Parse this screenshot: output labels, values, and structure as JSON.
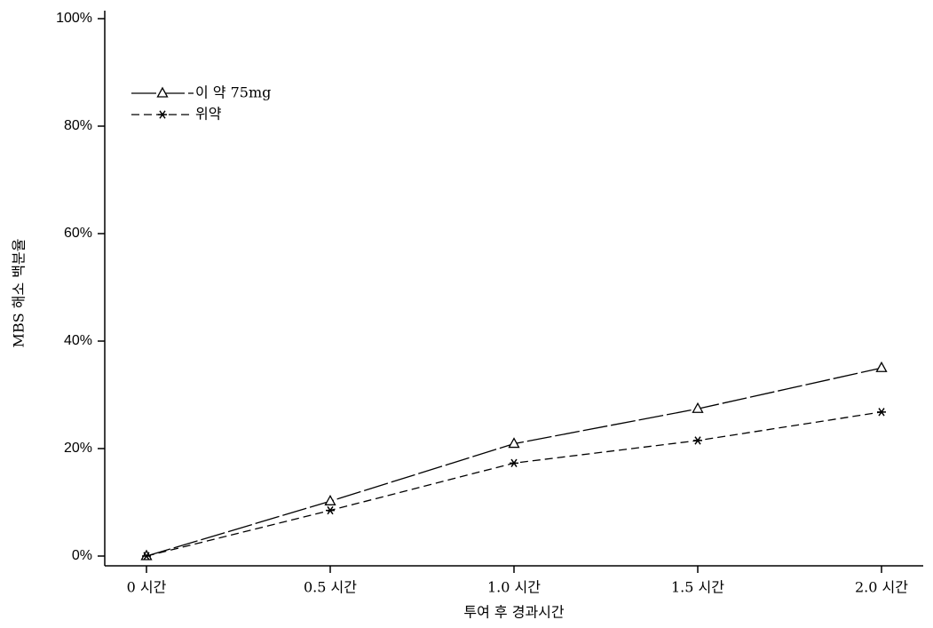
{
  "chart_data": {
    "type": "line",
    "categories": [
      "0 시간",
      "0.5 시간",
      "1.0 시간",
      "1.5 시간",
      "2.0 시간"
    ],
    "series": [
      {
        "name": "이 약 75mg",
        "color": "#000000",
        "marker": "triangle",
        "line_style": "long-dash",
        "values": [
          0,
          10.2,
          20.9,
          27.4,
          35.0
        ]
      },
      {
        "name": "위약",
        "color": "#000000",
        "marker": "asterisk",
        "line_style": "dash",
        "values": [
          0,
          8.5,
          17.3,
          21.5,
          26.8
        ]
      }
    ],
    "x_label": "투여 후 경과시간",
    "y_label": "MBS 해소 백분율",
    "ylim": [
      0,
      100
    ],
    "yticks": [
      {
        "value": 0,
        "label": "0%"
      },
      {
        "value": 20,
        "label": "20%"
      },
      {
        "value": 40,
        "label": "40%"
      },
      {
        "value": 60,
        "label": "60%"
      },
      {
        "value": 80,
        "label": "80%"
      },
      {
        "value": 100,
        "label": "100%"
      }
    ],
    "legend": "upper-left"
  }
}
